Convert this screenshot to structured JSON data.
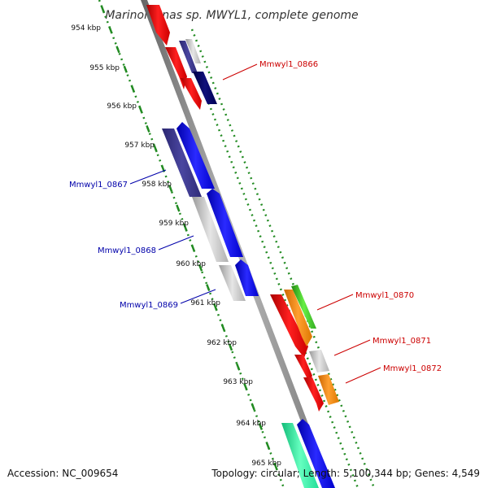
{
  "title": "Marinomonas sp. MWYL1, complete genome",
  "footer": {
    "accession": "Accession: NC_009654",
    "stats": "Topology: circular; Length: 5,100,344 bp; Genes: 4,549"
  },
  "ruler_ticks": [
    "954 kbp",
    "955 kbp",
    "956 kbp",
    "957 kbp",
    "958 kbp",
    "959 kbp",
    "960 kbp",
    "961 kbp",
    "962 kbp",
    "963 kbp",
    "964 kbp",
    "965 kbp"
  ],
  "gene_labels": [
    {
      "text": "Mmwyl1_0866",
      "color": "#cc0000"
    },
    {
      "text": "Mmwyl1_0867",
      "color": "#0000aa"
    },
    {
      "text": "Mmwyl1_0868",
      "color": "#0000aa"
    },
    {
      "text": "Mmwyl1_0869",
      "color": "#0000aa"
    },
    {
      "text": "Mmwyl1_0870",
      "color": "#cc0000"
    },
    {
      "text": "Mmwyl1_0871",
      "color": "#cc0000"
    },
    {
      "text": "Mmwyl1_0872",
      "color": "#cc0000"
    }
  ],
  "colors": {
    "red": "#ff0000",
    "blue": "#0000ff",
    "navy": "#000066",
    "slate": "#3a3580",
    "gray": "#c8c8c8",
    "orange": "#ff8800",
    "green": "#44cc33",
    "teal": "#33ffaa",
    "backbone": "#888888",
    "ruler": "#228b22"
  }
}
